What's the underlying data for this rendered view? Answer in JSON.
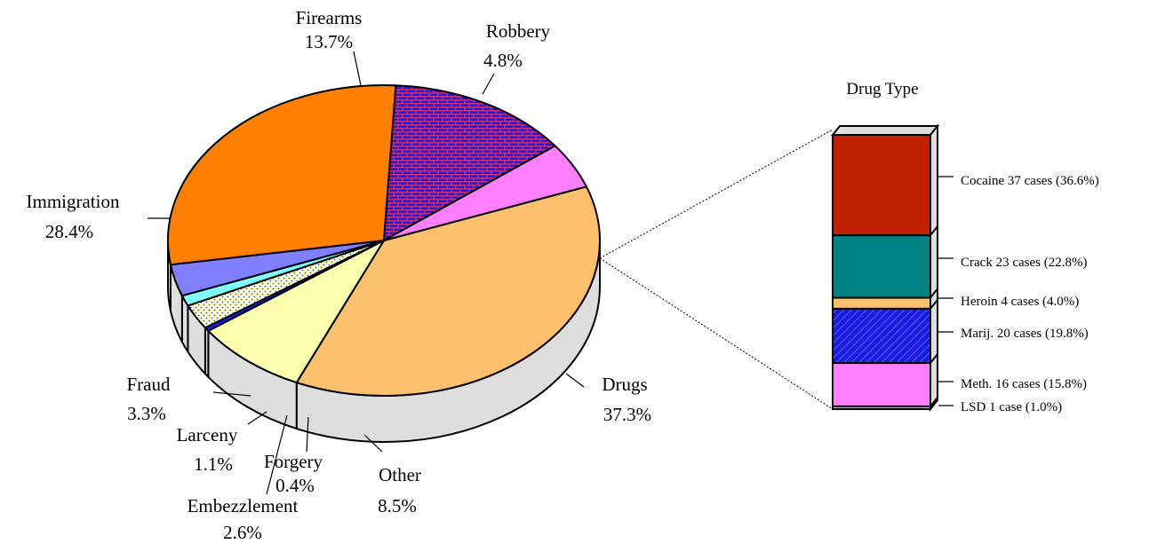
{
  "chart_data": [
    {
      "type": "pie",
      "title": "",
      "slices": [
        {
          "label": "Drugs",
          "pct_label": "37.3%",
          "value": 37.3,
          "color": "#FDC06C",
          "pattern": "none"
        },
        {
          "label": "Other",
          "pct_label": "8.5%",
          "value": 8.5,
          "color": "#FFFFB0",
          "pattern": "none"
        },
        {
          "label": "Forgery",
          "pct_label": "0.4%",
          "value": 0.4,
          "color": "#1A1AE0",
          "pattern": "none"
        },
        {
          "label": "Embezzlement",
          "pct_label": "2.6%",
          "value": 2.6,
          "color": "#FFFFCC",
          "pattern": "dots"
        },
        {
          "label": "Larceny",
          "pct_label": "1.1%",
          "value": 1.1,
          "color": "#7FFFFF",
          "pattern": "none"
        },
        {
          "label": "Fraud",
          "pct_label": "3.3%",
          "value": 3.3,
          "color": "#7F7FFF",
          "pattern": "none"
        },
        {
          "label": "Immigration",
          "pct_label": "28.4%",
          "value": 28.4,
          "color": "#FF8000",
          "pattern": "none"
        },
        {
          "label": "Firearms",
          "pct_label": "13.7%",
          "value": 13.7,
          "color": "#2020E0",
          "pattern": "bricks"
        },
        {
          "label": "Robbery",
          "pct_label": "4.8%",
          "value": 4.8,
          "color": "#FF80FF",
          "pattern": "none"
        }
      ]
    },
    {
      "type": "bar",
      "title": "Drug Type",
      "stacked": true,
      "series": [
        {
          "name": "Cocaine",
          "label": "Cocaine 37 cases (36.6%)",
          "value": 36.6,
          "cases": 37,
          "color": "#C02000",
          "pattern": "none"
        },
        {
          "name": "Crack",
          "label": "Crack 23 cases (22.8%)",
          "value": 22.8,
          "cases": 23,
          "color": "#008080",
          "pattern": "none"
        },
        {
          "name": "Heroin",
          "label": "Heroin 4 cases (4.0%)",
          "value": 4.0,
          "cases": 4,
          "color": "#FDC06C",
          "pattern": "none"
        },
        {
          "name": "Marij.",
          "label": "Marij. 20 cases (19.8%)",
          "value": 19.8,
          "cases": 20,
          "color": "#1A1AE0",
          "pattern": "hatch"
        },
        {
          "name": "Meth.",
          "label": "Meth. 16 cases (15.8%)",
          "value": 15.8,
          "cases": 16,
          "color": "#FF80FF",
          "pattern": "none"
        },
        {
          "name": "LSD",
          "label": "LSD 1 case (1.0%)",
          "value": 1.0,
          "cases": 1,
          "color": "#C0C0C0",
          "pattern": "none"
        }
      ]
    }
  ]
}
